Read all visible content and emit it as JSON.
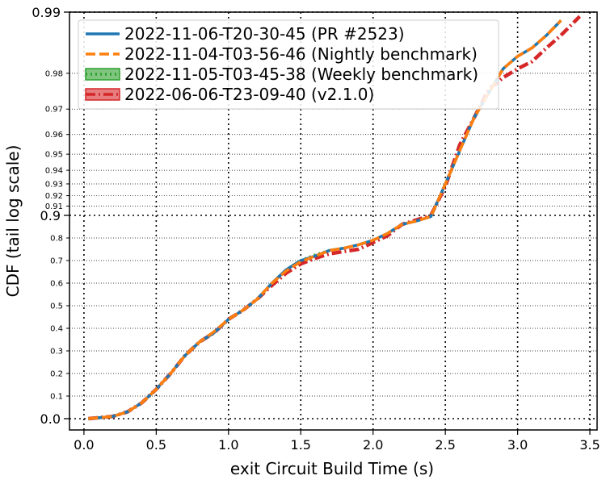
{
  "chart_data": {
    "type": "line",
    "xlabel": "exit Circuit Build Time (s)",
    "ylabel": "CDF (tail log scale)",
    "xlim": [
      -0.1,
      3.55
    ],
    "y_scale": "tail-log",
    "xticks": [
      "0.0",
      "0.5",
      "1.0",
      "1.5",
      "2.0",
      "2.5",
      "3.0",
      "3.5"
    ],
    "xtick_values": [
      0,
      0.5,
      1.0,
      1.5,
      2.0,
      2.5,
      3.0,
      3.5
    ],
    "yticks_major": [
      {
        "value": 0.0,
        "label": "0.0"
      },
      {
        "value": 0.9,
        "label": "0.9"
      },
      {
        "value": 0.99,
        "label": "0.99"
      }
    ],
    "yticks_minor": [
      {
        "value": 0.1,
        "label": "0.1"
      },
      {
        "value": 0.2,
        "label": "0.2"
      },
      {
        "value": 0.3,
        "label": "0.3"
      },
      {
        "value": 0.4,
        "label": "0.4"
      },
      {
        "value": 0.5,
        "label": "0.5"
      },
      {
        "value": 0.6,
        "label": "0.6"
      },
      {
        "value": 0.7,
        "label": "0.7"
      },
      {
        "value": 0.8,
        "label": "0.8"
      },
      {
        "value": 0.91,
        "label": "0.91"
      },
      {
        "value": 0.92,
        "label": "0.92"
      },
      {
        "value": 0.93,
        "label": "0.93"
      },
      {
        "value": 0.94,
        "label": "0.94"
      },
      {
        "value": 0.95,
        "label": "0.95"
      },
      {
        "value": 0.96,
        "label": "0.96"
      },
      {
        "value": 0.97,
        "label": "0.97"
      },
      {
        "value": 0.98,
        "label": "0.98"
      }
    ],
    "grid": true,
    "legend_position": "top-left",
    "series": [
      {
        "name": "2022-11-06-T20-30-45 (PR #2523)",
        "color": "#1f77b4",
        "style": "solid",
        "x": [
          0.03,
          0.2,
          0.3,
          0.4,
          0.5,
          0.6,
          0.7,
          0.8,
          0.9,
          1.0,
          1.1,
          1.2,
          1.3,
          1.4,
          1.5,
          1.6,
          1.7,
          1.8,
          1.9,
          2.0,
          2.1,
          2.2,
          2.3,
          2.4,
          2.5,
          2.6,
          2.7,
          2.8,
          2.9,
          3.0,
          3.1,
          3.2,
          3.3
        ],
        "y": [
          0.0,
          0.01,
          0.03,
          0.07,
          0.13,
          0.2,
          0.28,
          0.34,
          0.38,
          0.44,
          0.48,
          0.53,
          0.6,
          0.66,
          0.7,
          0.72,
          0.745,
          0.755,
          0.77,
          0.79,
          0.82,
          0.86,
          0.875,
          0.895,
          0.93,
          0.952,
          0.967,
          0.975,
          0.981,
          0.9835,
          0.985,
          0.987,
          0.989
        ]
      },
      {
        "name": "2022-11-04-T03-56-46 (Nightly benchmark)",
        "color": "#ff7f0e",
        "style": "dashed",
        "x": [
          0.03,
          0.2,
          0.3,
          0.4,
          0.5,
          0.6,
          0.7,
          0.8,
          0.9,
          1.0,
          1.1,
          1.2,
          1.3,
          1.4,
          1.5,
          1.6,
          1.7,
          1.8,
          1.9,
          2.0,
          2.1,
          2.2,
          2.3,
          2.4,
          2.5,
          2.6,
          2.7,
          2.8,
          2.9,
          3.0,
          3.1,
          3.2,
          3.3
        ],
        "y": [
          0.0,
          0.01,
          0.03,
          0.07,
          0.13,
          0.2,
          0.28,
          0.34,
          0.385,
          0.44,
          0.48,
          0.53,
          0.6,
          0.655,
          0.695,
          0.72,
          0.745,
          0.755,
          0.77,
          0.79,
          0.82,
          0.86,
          0.875,
          0.895,
          0.93,
          0.952,
          0.967,
          0.975,
          0.981,
          0.9835,
          0.985,
          0.987,
          0.989
        ]
      },
      {
        "name": "2022-11-05-T03-45-38 (Weekly benchmark)",
        "color": "#2ca02c",
        "style": "dotted",
        "x": [
          0.03,
          0.2,
          0.3,
          0.4,
          0.5,
          0.6,
          0.7,
          0.8,
          0.9,
          1.0,
          1.1,
          1.2,
          1.3,
          1.4,
          1.5,
          1.6,
          1.7,
          1.8,
          1.9,
          2.0,
          2.1,
          2.2,
          2.3,
          2.4,
          2.5,
          2.6,
          2.7,
          2.8,
          2.9,
          3.0,
          3.1,
          3.2,
          3.3
        ],
        "y": [
          0.0,
          0.01,
          0.03,
          0.07,
          0.13,
          0.2,
          0.28,
          0.34,
          0.38,
          0.44,
          0.48,
          0.53,
          0.6,
          0.66,
          0.7,
          0.725,
          0.745,
          0.755,
          0.77,
          0.79,
          0.82,
          0.86,
          0.875,
          0.895,
          0.93,
          0.952,
          0.967,
          0.975,
          0.981,
          0.9835,
          0.985,
          0.987,
          0.989
        ]
      },
      {
        "name": "2022-06-06-T23-09-40 (v2.1.0)",
        "color": "#d62728",
        "style": "dashdot",
        "x": [
          0.03,
          0.2,
          0.3,
          0.4,
          0.5,
          0.6,
          0.7,
          0.8,
          0.9,
          1.0,
          1.1,
          1.2,
          1.3,
          1.4,
          1.5,
          1.6,
          1.7,
          1.8,
          1.9,
          2.0,
          2.1,
          2.2,
          2.3,
          2.4,
          2.5,
          2.6,
          2.7,
          2.8,
          2.9,
          3.0,
          3.1,
          3.2,
          3.3,
          3.43
        ],
        "y": [
          0.0,
          0.01,
          0.03,
          0.07,
          0.13,
          0.2,
          0.28,
          0.34,
          0.38,
          0.44,
          0.48,
          0.53,
          0.59,
          0.645,
          0.685,
          0.71,
          0.73,
          0.74,
          0.75,
          0.78,
          0.81,
          0.86,
          0.88,
          0.9,
          0.928,
          0.955,
          0.967,
          0.976,
          0.979,
          0.981,
          0.9825,
          0.985,
          0.987,
          0.9895
        ]
      }
    ]
  }
}
